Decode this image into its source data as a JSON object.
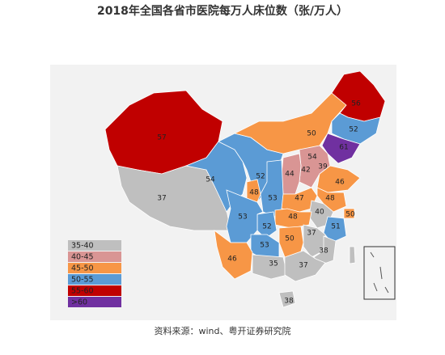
{
  "title": "2018年全国各省市医院每万人床位数（张/万人）",
  "source": "资料来源：wind、粤开证券研究院",
  "legend": [
    {
      "label": "35-40",
      "color": "#bfbfbf"
    },
    {
      "label": "40-45",
      "color": "#d99594"
    },
    {
      "label": "45-50",
      "color": "#f79646"
    },
    {
      "label": "50-55",
      "color": "#5b9bd5"
    },
    {
      "label": "55-60",
      "color": "#c00000"
    },
    {
      "label": ">60",
      "color": "#7030a0"
    }
  ],
  "regions": [
    {
      "label": "57",
      "color": "#c00000"
    },
    {
      "label": "37",
      "color": "#bfbfbf"
    },
    {
      "label": "54",
      "color": "#5b9bd5"
    },
    {
      "label": "52",
      "color": "#5b9bd5"
    },
    {
      "label": "50",
      "color": "#f79646"
    },
    {
      "label": "56",
      "color": "#c00000"
    },
    {
      "label": "52",
      "color": "#5b9bd5"
    },
    {
      "label": "61",
      "color": "#7030a0"
    },
    {
      "label": "54",
      "color": "#5b9bd5"
    },
    {
      "label": "39",
      "color": "#bfbfbf"
    },
    {
      "label": "42",
      "color": "#d99594"
    },
    {
      "label": "44",
      "color": "#d99594"
    },
    {
      "label": "48",
      "color": "#f79646"
    },
    {
      "label": "53",
      "color": "#5b9bd5"
    },
    {
      "label": "46",
      "color": "#f79646"
    },
    {
      "label": "47",
      "color": "#f79646"
    },
    {
      "label": "48",
      "color": "#f79646"
    },
    {
      "label": "40",
      "color": "#bfbfbf"
    },
    {
      "label": "50",
      "color": "#f79646"
    },
    {
      "label": "51",
      "color": "#5b9bd5"
    },
    {
      "label": "48",
      "color": "#f79646"
    },
    {
      "label": "52",
      "color": "#5b9bd5"
    },
    {
      "label": "53",
      "color": "#5b9bd5"
    },
    {
      "label": "50",
      "color": "#f79646"
    },
    {
      "label": "37",
      "color": "#bfbfbf"
    },
    {
      "label": "38",
      "color": "#bfbfbf"
    },
    {
      "label": "53",
      "color": "#5b9bd5"
    },
    {
      "label": "46",
      "color": "#f79646"
    },
    {
      "label": "35",
      "color": "#bfbfbf"
    },
    {
      "label": "37",
      "color": "#bfbfbf"
    },
    {
      "label": "38",
      "color": "#bfbfbf"
    }
  ]
}
